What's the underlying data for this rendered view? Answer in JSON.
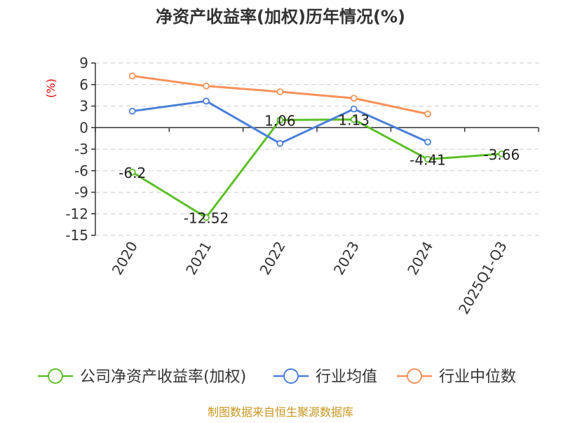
{
  "title": "净资产收益率(加权)历年情况(%)",
  "source_note": "制图数据来自恒生聚源数据库",
  "chart_data": {
    "type": "line",
    "title": "净资产收益率(加权)历年情况(%)",
    "ylabel": "(%)",
    "xlabel": "",
    "categories": [
      "2020",
      "2021",
      "2022",
      "2023",
      "2024",
      "2025Q1-Q3"
    ],
    "ylim": [
      -15,
      9
    ],
    "yticks": [
      9,
      6,
      3,
      0,
      -3,
      -6,
      -9,
      -12,
      -15
    ],
    "grid": true,
    "legend_position": "bottom",
    "series": [
      {
        "name": "公司净资产收益率(加权)",
        "color": "#5cbf28",
        "values": [
          -6.2,
          -12.52,
          1.06,
          1.13,
          -4.41,
          -3.66
        ],
        "labels": [
          "-6.2",
          "-12.52",
          "1.06",
          "1.13",
          "-4.41",
          "-3.66"
        ]
      },
      {
        "name": "行业均值",
        "color": "#4a7fd9",
        "values": [
          2.3,
          3.7,
          -2.2,
          2.6,
          -2.0,
          null
        ]
      },
      {
        "name": "行业中位数",
        "color": "#f7925a",
        "values": [
          7.2,
          5.8,
          5.0,
          4.1,
          1.9,
          null
        ]
      }
    ]
  }
}
